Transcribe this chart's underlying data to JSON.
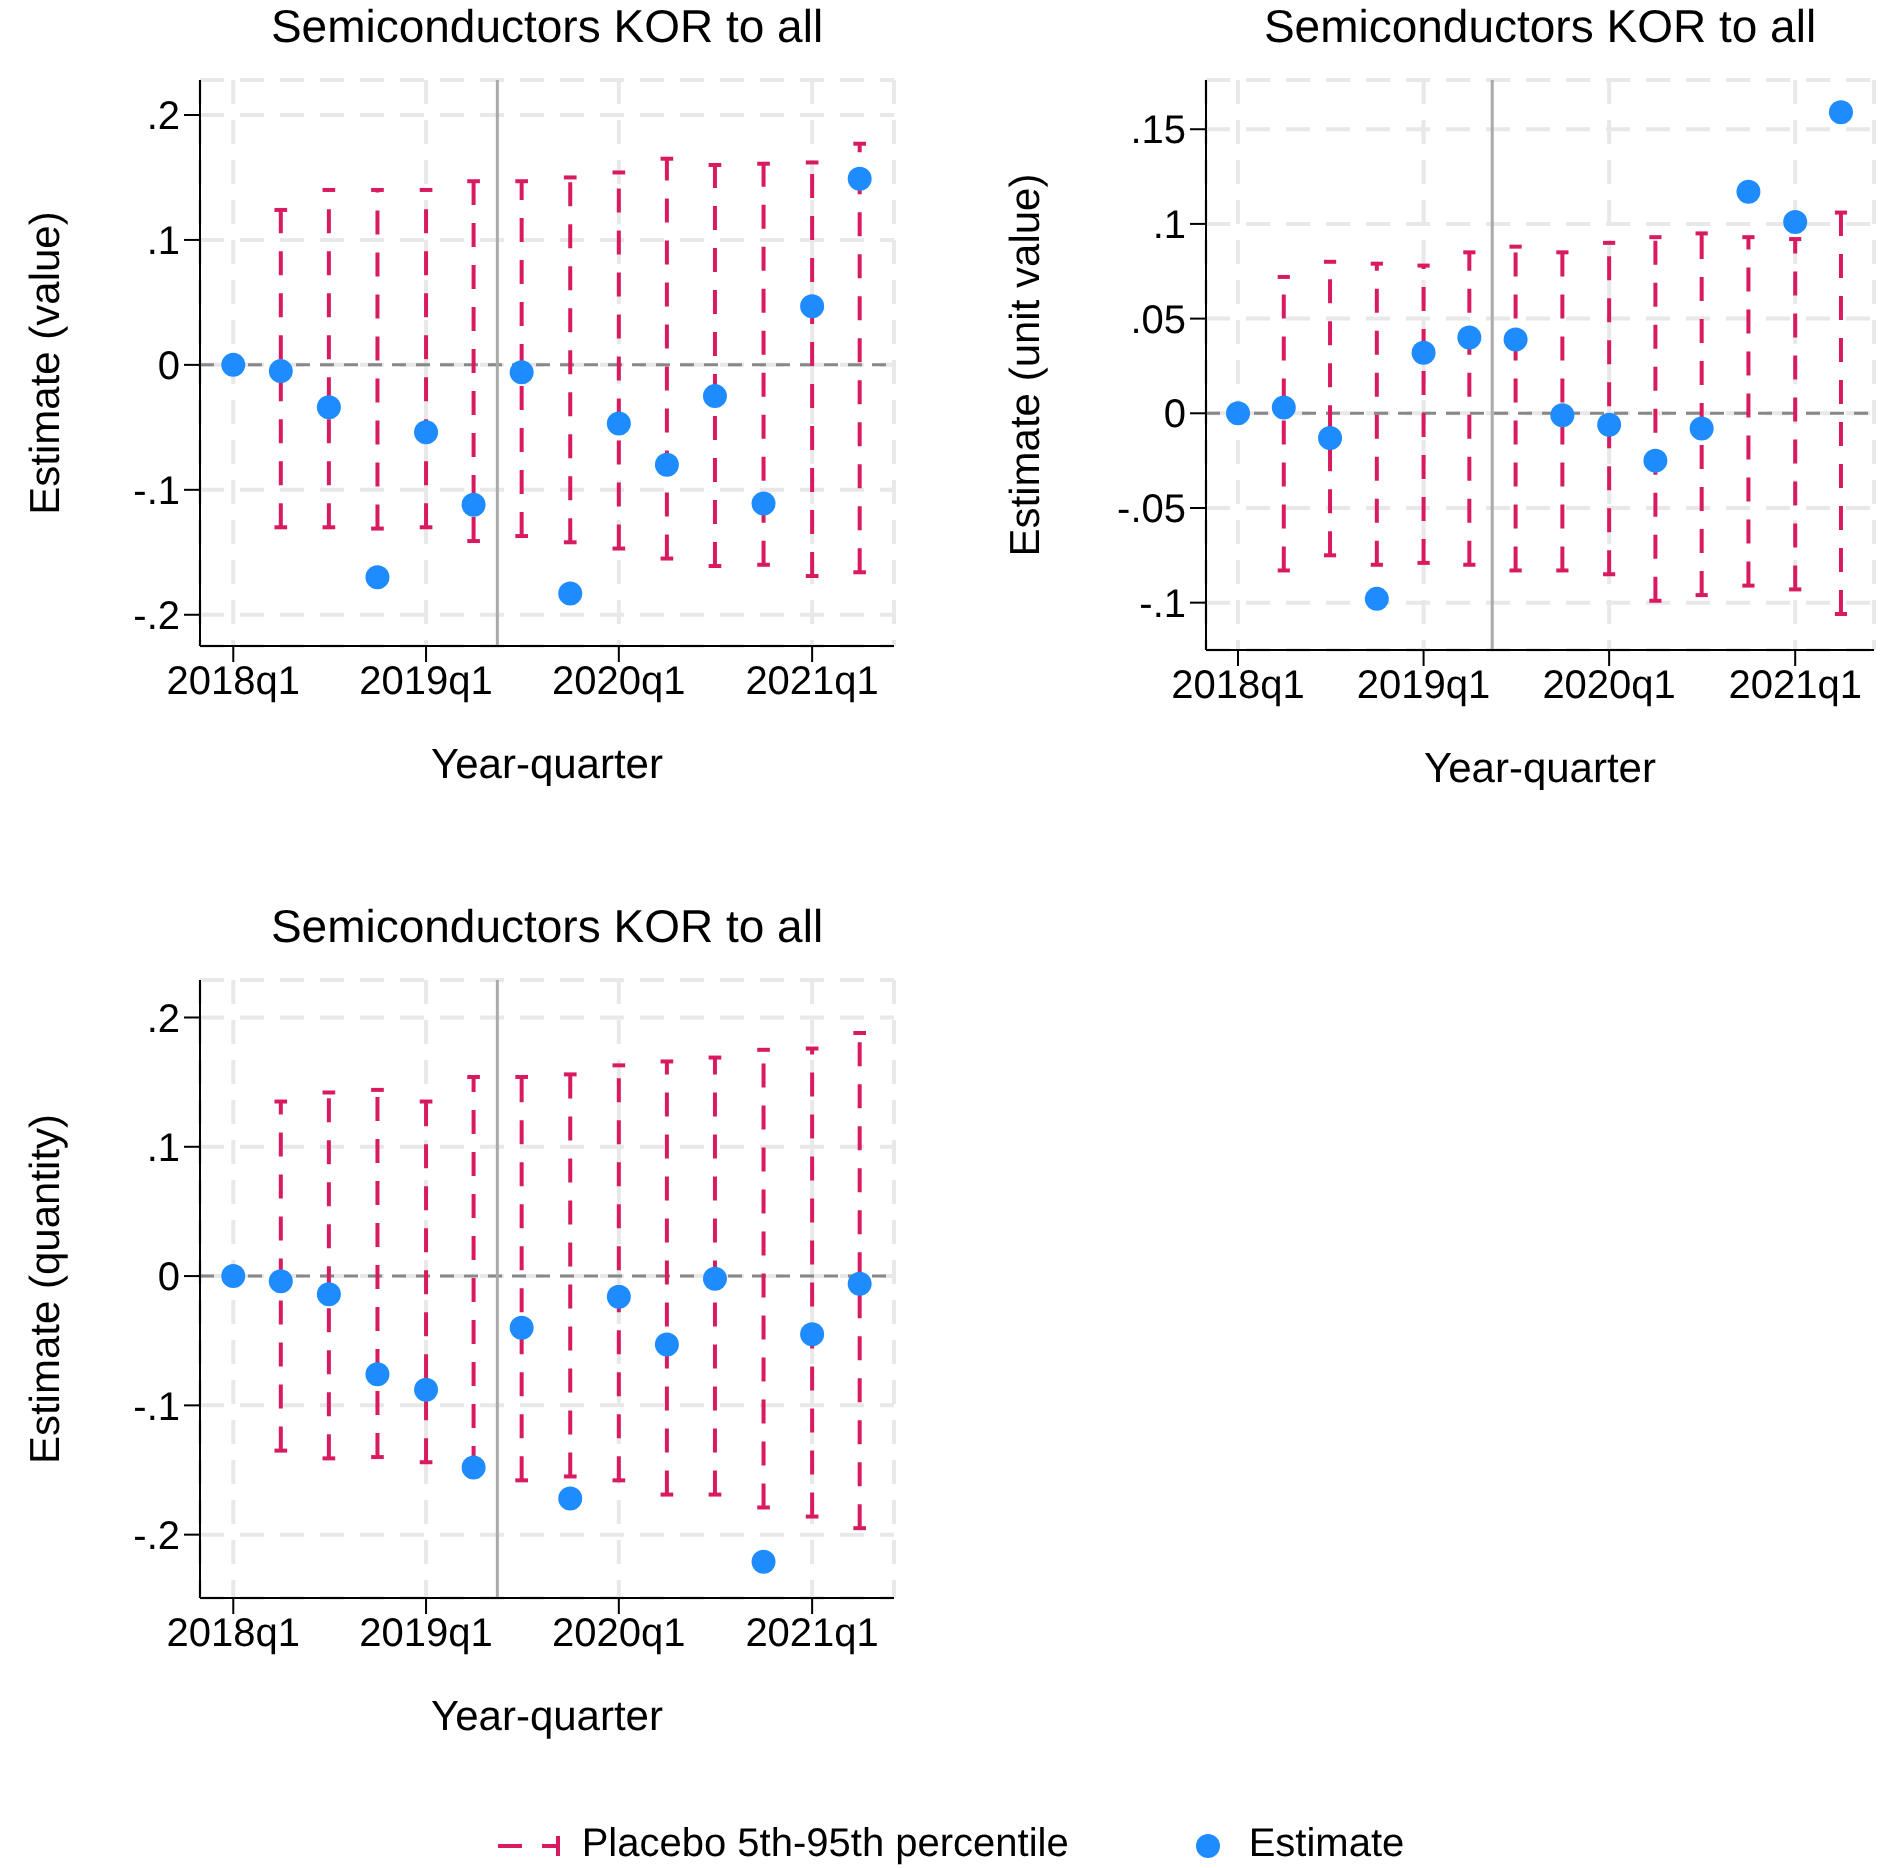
{
  "chart_data": [
    {
      "type": "scatter",
      "title": "Semiconductors KOR to all",
      "xlabel": "Year-quarter",
      "ylabel": "Estimate (value)",
      "x": [
        "2018-01",
        "2018-04",
        "2018-07",
        "2018-10",
        "2019-01",
        "2019-04",
        "2019-07",
        "2019-10",
        "2020-01",
        "2020-04",
        "2020-07",
        "2020-10",
        "2021-01",
        "2021-04"
      ],
      "xlim": [
        "2017-10-30",
        "2021-06-05"
      ],
      "xticks": [
        {
          "value": "2018-01",
          "label": "2018q1"
        },
        {
          "value": "2019-01",
          "label": "2019q1"
        },
        {
          "value": "2020-01",
          "label": "2020q1"
        },
        {
          "value": "2021-01",
          "label": "2021q1"
        }
      ],
      "ylim": [
        -0.225,
        0.228
      ],
      "yticks": [
        {
          "value": -0.2,
          "label": "-.2"
        },
        {
          "value": -0.1,
          "label": "-.1"
        },
        {
          "value": 0,
          "label": "0"
        },
        {
          "value": 0.1,
          "label": ".1"
        },
        {
          "value": 0.2,
          "label": ".2"
        }
      ],
      "grid": true,
      "marker": "circle",
      "series": [
        {
          "color": "#1e8cff",
          "values": [
            0,
            -0.005,
            -0.034,
            -0.17,
            -0.054,
            -0.112,
            -0.006,
            -0.183,
            -0.047,
            -0.08,
            -0.025,
            -0.111,
            0.047,
            0.149
          ],
          "errors": [
            null,
            [
              -0.13,
              0.124
            ],
            [
              -0.13,
              0.14
            ],
            [
              -0.131,
              0.14
            ],
            [
              -0.13,
              0.14
            ],
            [
              -0.141,
              0.147
            ],
            [
              -0.137,
              0.147
            ],
            [
              -0.142,
              0.15
            ],
            [
              -0.147,
              0.154
            ],
            [
              -0.155,
              0.165
            ],
            [
              -0.161,
              0.16
            ],
            [
              -0.16,
              0.161
            ],
            [
              -0.169,
              0.162
            ],
            [
              -0.166,
              0.177
            ]
          ]
        }
      ],
      "ref_lines": [
        {
          "axis": "y",
          "value": 0,
          "color": "#888888",
          "line_style": "dashed"
        },
        {
          "axis": "x",
          "value": "2019-05-16",
          "color": "#aaaaaa",
          "line_style": "solid"
        }
      ]
    },
    {
      "type": "scatter",
      "title": "Semiconductors KOR to all",
      "xlabel": "Year-quarter",
      "ylabel": "Estimate (unit value)",
      "x": [
        "2018-01",
        "2018-04",
        "2018-07",
        "2018-10",
        "2019-01",
        "2019-04",
        "2019-07",
        "2019-10",
        "2020-01",
        "2020-04",
        "2020-07",
        "2020-10",
        "2021-01",
        "2021-04"
      ],
      "xlim": [
        "2017-10-30",
        "2021-06-05"
      ],
      "xticks": [
        {
          "value": "2018-01",
          "label": "2018q1"
        },
        {
          "value": "2019-01",
          "label": "2019q1"
        },
        {
          "value": "2020-01",
          "label": "2020q1"
        },
        {
          "value": "2021-01",
          "label": "2021q1"
        }
      ],
      "ylim": [
        -0.125,
        0.176
      ],
      "yticks": [
        {
          "value": -0.1,
          "label": "-.1"
        },
        {
          "value": -0.05,
          "label": "-.05"
        },
        {
          "value": 0,
          "label": "0"
        },
        {
          "value": 0.05,
          "label": ".05"
        },
        {
          "value": 0.1,
          "label": ".1"
        },
        {
          "value": 0.15,
          "label": ".15"
        }
      ],
      "grid": true,
      "marker": "circle",
      "series": [
        {
          "color": "#1e8cff",
          "values": [
            0,
            0.003,
            -0.013,
            -0.098,
            0.032,
            0.04,
            0.039,
            -0.001,
            -0.006,
            -0.025,
            -0.008,
            0.117,
            0.101,
            0.159
          ],
          "errors": [
            null,
            [
              -0.083,
              0.072
            ],
            [
              -0.075,
              0.08
            ],
            [
              -0.08,
              0.079
            ],
            [
              -0.079,
              0.078
            ],
            [
              -0.08,
              0.085
            ],
            [
              -0.083,
              0.088
            ],
            [
              -0.083,
              0.085
            ],
            [
              -0.085,
              0.09
            ],
            [
              -0.099,
              0.093
            ],
            [
              -0.096,
              0.095
            ],
            [
              -0.091,
              0.093
            ],
            [
              -0.093,
              0.092
            ],
            [
              -0.106,
              0.106
            ]
          ]
        }
      ],
      "ref_lines": [
        {
          "axis": "y",
          "value": 0,
          "color": "#888888",
          "line_style": "dashed"
        },
        {
          "axis": "x",
          "value": "2019-05-16",
          "color": "#aaaaaa",
          "line_style": "solid"
        }
      ]
    },
    {
      "type": "scatter",
      "title": "Semiconductors KOR to all",
      "xlabel": "Year-quarter",
      "ylabel": "Estimate (quantity)",
      "x": [
        "2018-01",
        "2018-04",
        "2018-07",
        "2018-10",
        "2019-01",
        "2019-04",
        "2019-07",
        "2019-10",
        "2020-01",
        "2020-04",
        "2020-07",
        "2020-10",
        "2021-01",
        "2021-04"
      ],
      "xlim": [
        "2017-10-30",
        "2021-06-05"
      ],
      "xticks": [
        {
          "value": "2018-01",
          "label": "2018q1"
        },
        {
          "value": "2019-01",
          "label": "2019q1"
        },
        {
          "value": "2020-01",
          "label": "2020q1"
        },
        {
          "value": "2021-01",
          "label": "2021q1"
        }
      ],
      "ylim": [
        -0.249,
        0.229
      ],
      "yticks": [
        {
          "value": -0.2,
          "label": "-.2"
        },
        {
          "value": -0.1,
          "label": "-.1"
        },
        {
          "value": 0,
          "label": "0"
        },
        {
          "value": 0.1,
          "label": ".1"
        },
        {
          "value": 0.2,
          "label": ".2"
        }
      ],
      "grid": true,
      "marker": "circle",
      "legend": "bottom",
      "annotations": [
        "Placebo 5th-95th percentile"
      ],
      "series": [
        {
          "name": "Estimate",
          "color": "#1e8cff",
          "values": [
            0,
            -0.004,
            -0.014,
            -0.076,
            -0.088,
            -0.148,
            -0.04,
            -0.172,
            -0.016,
            -0.053,
            -0.002,
            -0.221,
            -0.045,
            -0.006
          ],
          "errors": [
            null,
            [
              -0.135,
              0.135
            ],
            [
              -0.141,
              0.142
            ],
            [
              -0.14,
              0.144
            ],
            [
              -0.144,
              0.135
            ],
            [
              -0.15,
              0.154
            ],
            [
              -0.158,
              0.154
            ],
            [
              -0.155,
              0.156
            ],
            [
              -0.158,
              0.163
            ],
            [
              -0.169,
              0.166
            ],
            [
              -0.169,
              0.169
            ],
            [
              -0.179,
              0.175
            ],
            [
              -0.186,
              0.176
            ],
            [
              -0.195,
              0.188
            ]
          ]
        }
      ],
      "ref_lines": [
        {
          "axis": "y",
          "value": 0,
          "color": "#888888",
          "line_style": "dashed"
        },
        {
          "axis": "x",
          "value": "2019-05-16",
          "color": "#aaaaaa",
          "line_style": "solid"
        }
      ]
    }
  ]
}
